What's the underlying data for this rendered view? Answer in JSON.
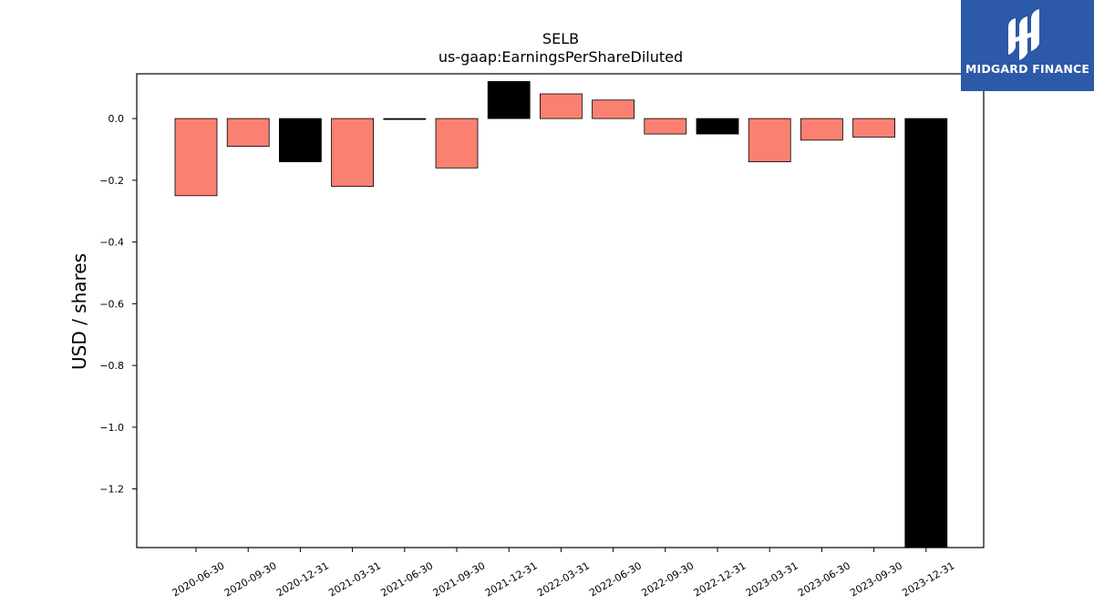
{
  "chart_data": {
    "type": "bar",
    "title": "SELB",
    "subtitle": "us-gaap:EarningsPerShareDiluted",
    "xlabel": "",
    "ylabel": "USD / shares",
    "categories": [
      "2020-06-30",
      "2020-09-30",
      "2020-12-31",
      "2021-03-31",
      "2021-06-30",
      "2021-09-30",
      "2021-12-31",
      "2022-03-31",
      "2022-06-30",
      "2022-09-30",
      "2022-12-31",
      "2023-03-31",
      "2023-06-30",
      "2023-09-30",
      "2023-12-31"
    ],
    "values": [
      -0.25,
      -0.09,
      -0.14,
      -0.22,
      0.0,
      -0.16,
      0.12,
      0.08,
      0.06,
      -0.05,
      -0.05,
      -0.14,
      -0.07,
      -0.06,
      -1.39
    ],
    "bar_colors": [
      "#fa8072",
      "#fa8072",
      "#000000",
      "#fa8072",
      "#000000",
      "#fa8072",
      "#000000",
      "#fa8072",
      "#fa8072",
      "#fa8072",
      "#000000",
      "#fa8072",
      "#fa8072",
      "#fa8072",
      "#000000"
    ],
    "ylim": [
      -1.39,
      0.145
    ],
    "yticks": [
      0.0,
      -0.2,
      -0.4,
      -0.6,
      -0.8,
      -1.0,
      -1.2
    ],
    "ytick_labels": [
      "0.0",
      "−0.2",
      "−0.4",
      "−0.6",
      "−0.8",
      "−1.0",
      "−1.2"
    ],
    "grid": false,
    "legend": "none"
  },
  "logo": {
    "text": "MIDGARD FINANCE",
    "background": "#2c59a8"
  }
}
